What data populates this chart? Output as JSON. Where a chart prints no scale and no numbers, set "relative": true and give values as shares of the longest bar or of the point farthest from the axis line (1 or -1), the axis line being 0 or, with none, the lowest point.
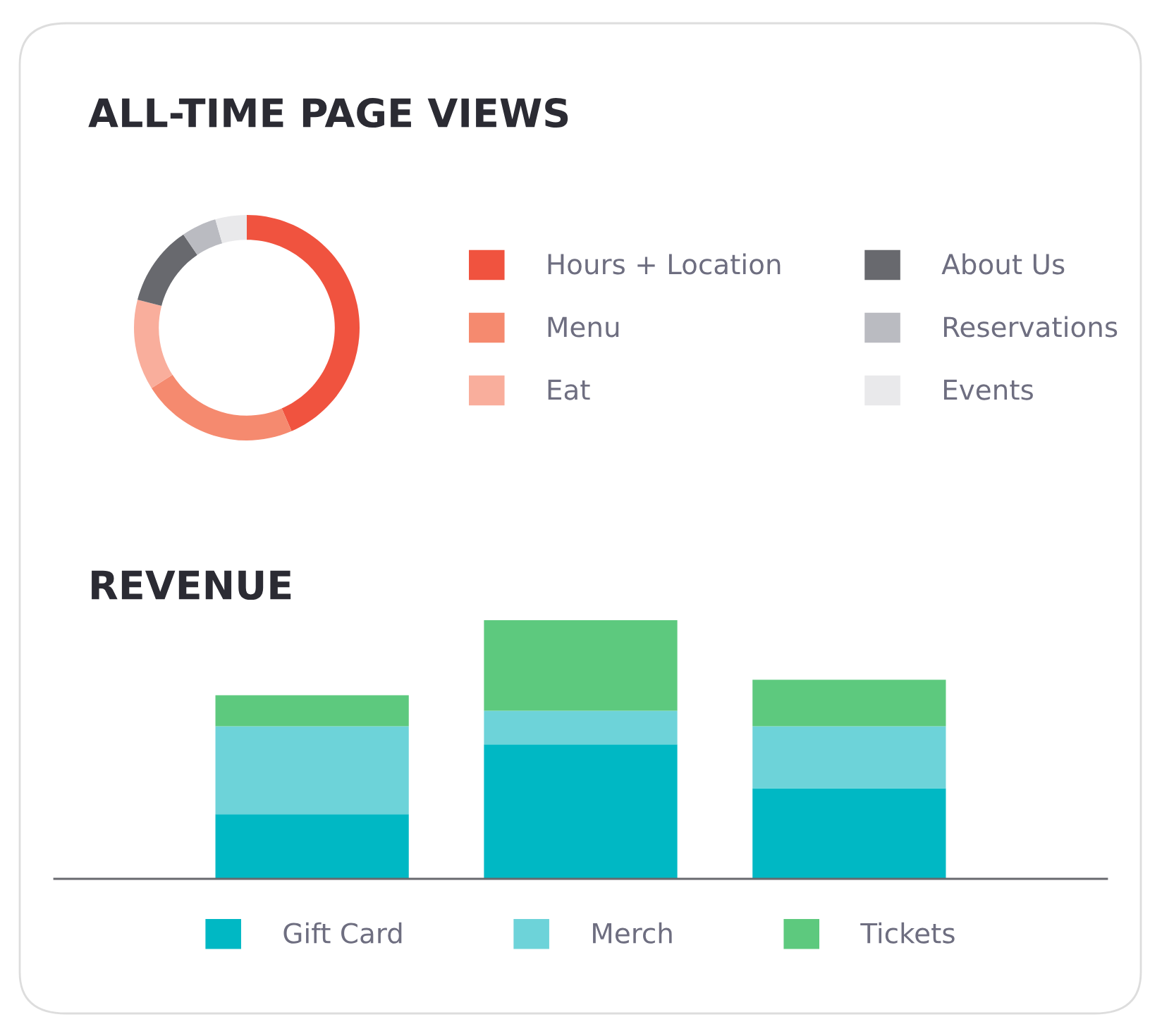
{
  "chart_data": [
    {
      "type": "donut",
      "title": "ALL-TIME PAGE VIEWS",
      "categories": [
        "Hours + Location",
        "Menu",
        "Eat",
        "About Us",
        "Reservations",
        "Events"
      ],
      "values": [
        43.5,
        22.5,
        13,
        11.5,
        5,
        4.5
      ],
      "colors": [
        "#f0533f",
        "#f58a6f",
        "#f9ae9c",
        "#68696e",
        "#babbc1",
        "#e9e9eb"
      ],
      "legend": "right"
    },
    {
      "type": "bar",
      "title": "REVENUE",
      "relative": true,
      "stacked": true,
      "categories": [
        null,
        null,
        null
      ],
      "legend": "bottom",
      "series": [
        {
          "name": "Gift Card",
          "color": "#00b8c4",
          "values": [
            0.25,
            0.52,
            0.35
          ]
        },
        {
          "name": "Merch",
          "color": "#6dd3d9",
          "values": [
            0.34,
            0.13,
            0.24
          ]
        },
        {
          "name": "Tickets",
          "color": "#5dc97e",
          "values": [
            0.12,
            0.35,
            0.18
          ]
        }
      ]
    }
  ]
}
